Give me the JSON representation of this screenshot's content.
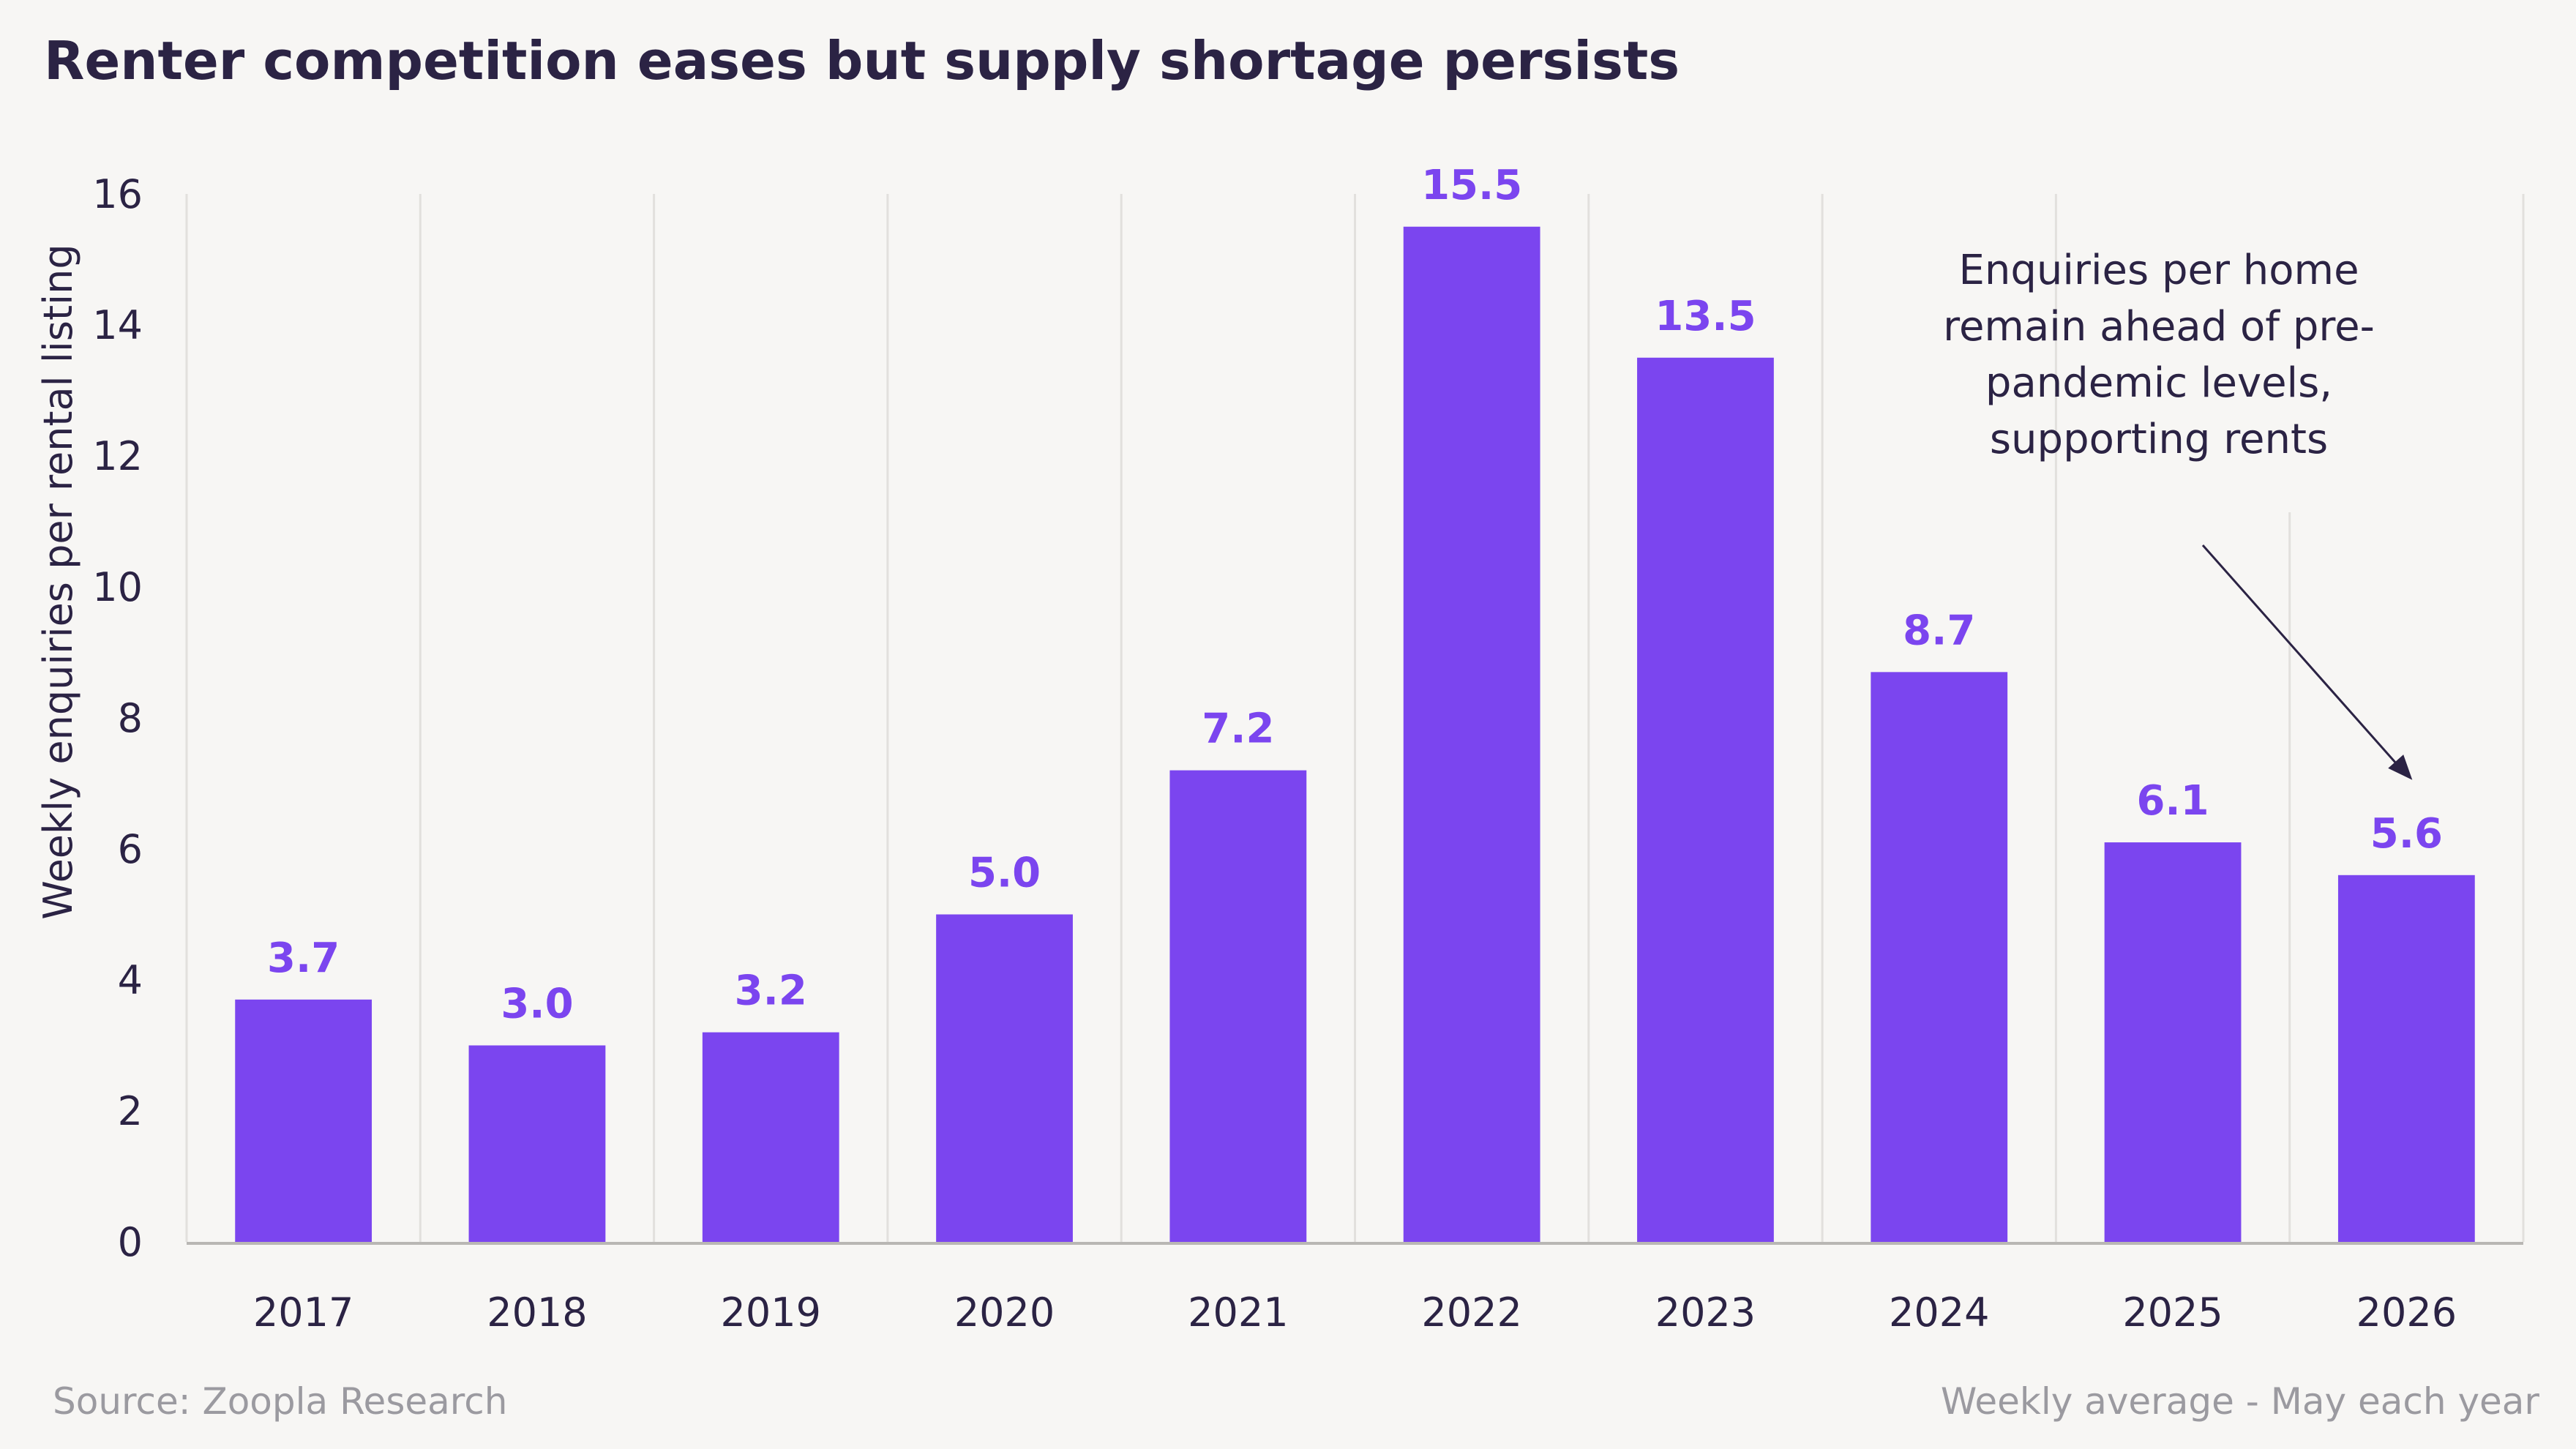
{
  "chart_data": {
    "type": "bar",
    "title": "Renter competition eases but supply shortage persists",
    "ylabel": "Weekly enquiries per rental listing",
    "xlabel": "",
    "categories": [
      "2017",
      "2018",
      "2019",
      "2020",
      "2021",
      "2022",
      "2023",
      "2024",
      "2025",
      "2026"
    ],
    "values": [
      3.7,
      3.0,
      3.2,
      5.0,
      7.2,
      15.5,
      13.5,
      8.7,
      6.1,
      5.6
    ],
    "data_labels": [
      "3.7",
      "3.0",
      "3.2",
      "5.0",
      "7.2",
      "15.5",
      "13.5",
      "8.7",
      "6.1",
      "5.6"
    ],
    "ylim": [
      0,
      16
    ],
    "yticks": [
      0,
      2,
      4,
      6,
      8,
      10,
      12,
      14,
      16
    ],
    "grid": "vertical",
    "legend": "none",
    "annotation": {
      "lines": [
        "Enquiries per home",
        "remain ahead of pre-",
        "pandemic levels,",
        "supporting rents"
      ],
      "target_category": "2026"
    },
    "footnotes": {
      "source": "Source: Zoopla Research",
      "note": "Weekly average - May each year"
    }
  },
  "colors": {
    "background": "#f7f6f4",
    "bar": "#7b45ef",
    "label": "#7b45ef",
    "text": "#2b2344",
    "grid": "#e2e0dd",
    "axis": "#b9b7b4",
    "muted": "#9b9aa0"
  }
}
